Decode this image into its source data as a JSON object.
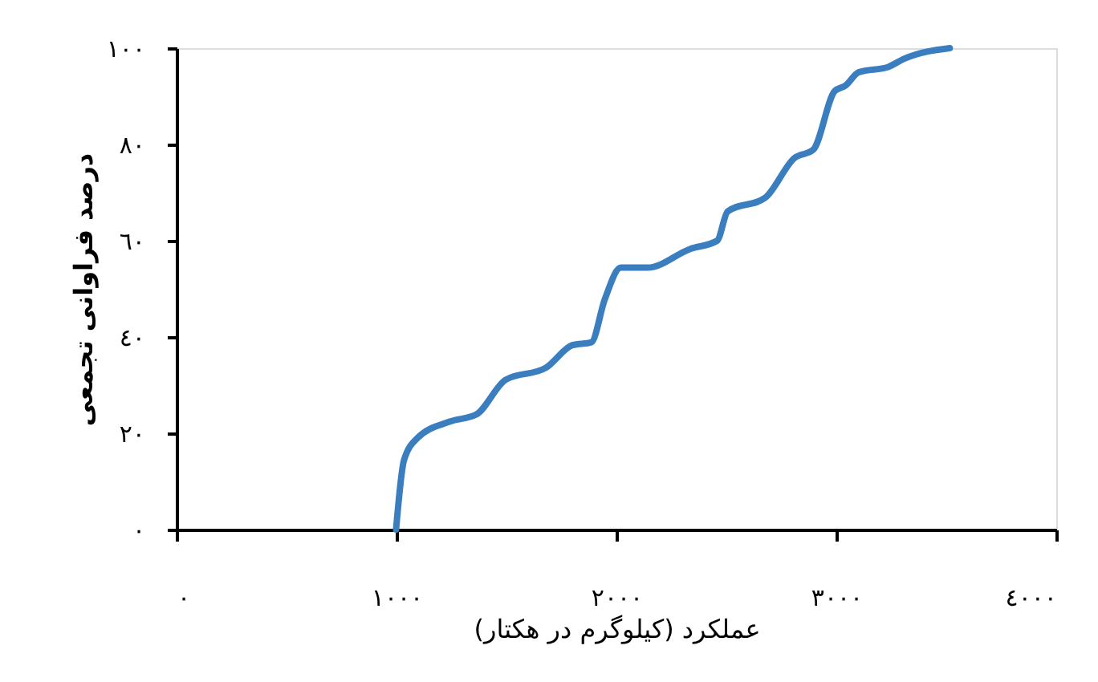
{
  "chart_data": {
    "type": "line",
    "xlabel": "عملکرد (کیلوگرم در هکتار)",
    "ylabel": "درصد فراوانی تجمعی",
    "series": [
      {
        "color": "#3a7ebf",
        "x": [
          998,
          1034,
          1095,
          1241,
          1363,
          1496,
          1679,
          1800,
          1886,
          1947,
          2020,
          2141,
          2336,
          2458,
          2506,
          2676,
          2810,
          2895,
          2993,
          3041,
          3102,
          3236,
          3309,
          3516
        ],
        "values": [
          0,
          14.4,
          19,
          22.4,
          23.9,
          31.1,
          33.6,
          38.3,
          38.9,
          47.8,
          54.4,
          54.4,
          58.3,
          60,
          66.1,
          68.9,
          77.2,
          78.9,
          91.1,
          92.2,
          95,
          96.1,
          97.8,
          100
        ]
      }
    ],
    "xlim": [
      0,
      4000
    ],
    "ylim": [
      0,
      100
    ],
    "xticks": [
      {
        "value": 0,
        "label": "٠"
      },
      {
        "value": 1000,
        "label": "١٠٠٠"
      },
      {
        "value": 2000,
        "label": "٢٠٠٠"
      },
      {
        "value": 3000,
        "label": "٣٠٠٠"
      },
      {
        "value": 4000,
        "label": "٤٠٠٠"
      }
    ],
    "yticks": [
      {
        "value": 0,
        "label": "٠"
      },
      {
        "value": 20,
        "label": "٢٠"
      },
      {
        "value": 40,
        "label": "٤٠"
      },
      {
        "value": 60,
        "label": "٦٠"
      },
      {
        "value": 80,
        "label": "٨٠"
      },
      {
        "value": 100,
        "label": "١٠٠"
      }
    ],
    "grid": false,
    "legend": false,
    "marker": "none",
    "line_style": "solid"
  }
}
